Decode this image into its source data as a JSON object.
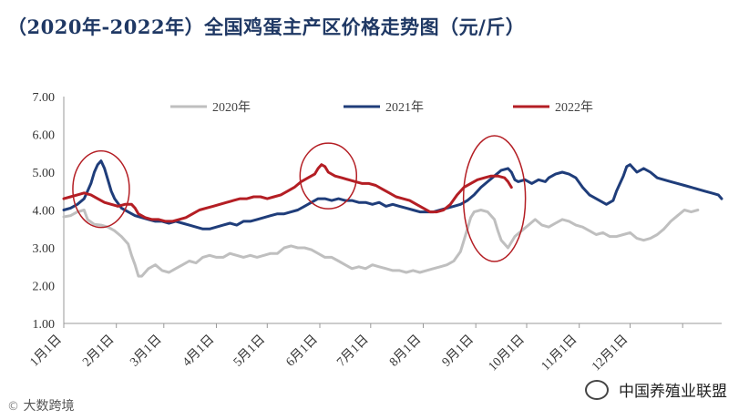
{
  "chart_data": {
    "type": "line",
    "title": "（2020年-2022年）全国鸡蛋主产区价格走势图（元/斤）",
    "ylim": [
      1.0,
      7.0
    ],
    "yticks": [
      "1.00",
      "2.00",
      "3.00",
      "4.00",
      "5.00",
      "6.00",
      "7.00"
    ],
    "xticks": [
      "1月1日",
      "2月1日",
      "3月1日",
      "4月1日",
      "5月1日",
      "6月1日",
      "7月1日",
      "8月1日",
      "9月1日",
      "10月1日",
      "11月1日",
      "12月1日"
    ],
    "legend_position": "top",
    "series": [
      {
        "name": "2020年",
        "color": "#bfbfbf",
        "points": [
          [
            0,
            3.82
          ],
          [
            4,
            3.85
          ],
          [
            8,
            3.95
          ],
          [
            12,
            4.0
          ],
          [
            14,
            3.75
          ],
          [
            18,
            3.62
          ],
          [
            22,
            3.6
          ],
          [
            26,
            3.55
          ],
          [
            30,
            3.45
          ],
          [
            34,
            3.3
          ],
          [
            38,
            3.1
          ],
          [
            40,
            2.8
          ],
          [
            42,
            2.55
          ],
          [
            44,
            2.25
          ],
          [
            46,
            2.25
          ],
          [
            50,
            2.45
          ],
          [
            54,
            2.55
          ],
          [
            58,
            2.4
          ],
          [
            62,
            2.35
          ],
          [
            66,
            2.45
          ],
          [
            70,
            2.55
          ],
          [
            74,
            2.65
          ],
          [
            78,
            2.6
          ],
          [
            82,
            2.75
          ],
          [
            86,
            2.8
          ],
          [
            90,
            2.75
          ],
          [
            94,
            2.75
          ],
          [
            98,
            2.85
          ],
          [
            102,
            2.8
          ],
          [
            106,
            2.75
          ],
          [
            110,
            2.8
          ],
          [
            114,
            2.75
          ],
          [
            118,
            2.8
          ],
          [
            122,
            2.85
          ],
          [
            126,
            2.85
          ],
          [
            130,
            3.0
          ],
          [
            134,
            3.05
          ],
          [
            138,
            3.0
          ],
          [
            142,
            3.0
          ],
          [
            146,
            2.95
          ],
          [
            150,
            2.85
          ],
          [
            154,
            2.75
          ],
          [
            158,
            2.75
          ],
          [
            162,
            2.65
          ],
          [
            166,
            2.55
          ],
          [
            170,
            2.45
          ],
          [
            174,
            2.5
          ],
          [
            178,
            2.45
          ],
          [
            182,
            2.55
          ],
          [
            186,
            2.5
          ],
          [
            190,
            2.45
          ],
          [
            194,
            2.4
          ],
          [
            198,
            2.4
          ],
          [
            202,
            2.35
          ],
          [
            206,
            2.4
          ],
          [
            210,
            2.35
          ],
          [
            214,
            2.4
          ],
          [
            218,
            2.45
          ],
          [
            222,
            2.5
          ],
          [
            226,
            2.55
          ],
          [
            230,
            2.65
          ],
          [
            234,
            2.9
          ],
          [
            236,
            3.2
          ],
          [
            238,
            3.5
          ],
          [
            240,
            3.8
          ],
          [
            242,
            3.95
          ],
          [
            246,
            4.0
          ],
          [
            250,
            3.95
          ],
          [
            254,
            3.75
          ],
          [
            256,
            3.45
          ],
          [
            258,
            3.2
          ],
          [
            262,
            3.0
          ],
          [
            266,
            3.3
          ],
          [
            270,
            3.45
          ],
          [
            274,
            3.6
          ],
          [
            278,
            3.75
          ],
          [
            282,
            3.6
          ],
          [
            286,
            3.55
          ],
          [
            290,
            3.65
          ],
          [
            294,
            3.75
          ],
          [
            298,
            3.7
          ],
          [
            302,
            3.6
          ],
          [
            306,
            3.55
          ],
          [
            310,
            3.45
          ],
          [
            314,
            3.35
          ],
          [
            318,
            3.4
          ],
          [
            322,
            3.3
          ],
          [
            326,
            3.3
          ],
          [
            330,
            3.35
          ],
          [
            334,
            3.4
          ],
          [
            338,
            3.25
          ],
          [
            342,
            3.2
          ],
          [
            346,
            3.25
          ],
          [
            350,
            3.35
          ],
          [
            354,
            3.5
          ],
          [
            358,
            3.7
          ],
          [
            362,
            3.85
          ],
          [
            366,
            4.0
          ],
          [
            370,
            3.95
          ],
          [
            374,
            4.0
          ]
        ]
      },
      {
        "name": "2021年",
        "color": "#1f3d7a",
        "points": [
          [
            0,
            4.0
          ],
          [
            4,
            4.05
          ],
          [
            8,
            4.15
          ],
          [
            12,
            4.3
          ],
          [
            14,
            4.5
          ],
          [
            16,
            4.7
          ],
          [
            18,
            5.0
          ],
          [
            20,
            5.2
          ],
          [
            22,
            5.3
          ],
          [
            24,
            5.1
          ],
          [
            26,
            4.8
          ],
          [
            28,
            4.5
          ],
          [
            30,
            4.3
          ],
          [
            34,
            4.05
          ],
          [
            38,
            3.95
          ],
          [
            42,
            3.85
          ],
          [
            46,
            3.8
          ],
          [
            50,
            3.75
          ],
          [
            54,
            3.7
          ],
          [
            58,
            3.7
          ],
          [
            62,
            3.65
          ],
          [
            66,
            3.7
          ],
          [
            70,
            3.65
          ],
          [
            74,
            3.6
          ],
          [
            78,
            3.55
          ],
          [
            82,
            3.5
          ],
          [
            86,
            3.5
          ],
          [
            90,
            3.55
          ],
          [
            94,
            3.6
          ],
          [
            98,
            3.65
          ],
          [
            102,
            3.6
          ],
          [
            106,
            3.7
          ],
          [
            110,
            3.7
          ],
          [
            114,
            3.75
          ],
          [
            118,
            3.8
          ],
          [
            122,
            3.85
          ],
          [
            126,
            3.9
          ],
          [
            130,
            3.9
          ],
          [
            134,
            3.95
          ],
          [
            138,
            4.0
          ],
          [
            142,
            4.1
          ],
          [
            146,
            4.2
          ],
          [
            150,
            4.3
          ],
          [
            154,
            4.3
          ],
          [
            158,
            4.25
          ],
          [
            162,
            4.3
          ],
          [
            166,
            4.25
          ],
          [
            170,
            4.25
          ],
          [
            174,
            4.2
          ],
          [
            178,
            4.2
          ],
          [
            182,
            4.15
          ],
          [
            186,
            4.2
          ],
          [
            190,
            4.1
          ],
          [
            194,
            4.15
          ],
          [
            198,
            4.1
          ],
          [
            202,
            4.05
          ],
          [
            206,
            4.0
          ],
          [
            210,
            3.95
          ],
          [
            214,
            3.95
          ],
          [
            218,
            3.95
          ],
          [
            222,
            4.0
          ],
          [
            226,
            4.05
          ],
          [
            230,
            4.1
          ],
          [
            234,
            4.15
          ],
          [
            238,
            4.25
          ],
          [
            242,
            4.4
          ],
          [
            246,
            4.6
          ],
          [
            250,
            4.75
          ],
          [
            254,
            4.9
          ],
          [
            258,
            5.05
          ],
          [
            262,
            5.1
          ],
          [
            264,
            5.0
          ],
          [
            266,
            4.8
          ],
          [
            268,
            4.75
          ],
          [
            272,
            4.8
          ],
          [
            276,
            4.7
          ],
          [
            280,
            4.8
          ],
          [
            284,
            4.75
          ],
          [
            286,
            4.85
          ],
          [
            290,
            4.95
          ],
          [
            294,
            5.0
          ],
          [
            298,
            4.95
          ],
          [
            302,
            4.85
          ],
          [
            306,
            4.6
          ],
          [
            310,
            4.4
          ],
          [
            314,
            4.3
          ],
          [
            318,
            4.2
          ],
          [
            320,
            4.15
          ],
          [
            324,
            4.25
          ],
          [
            326,
            4.5
          ],
          [
            330,
            4.9
          ],
          [
            332,
            5.15
          ],
          [
            334,
            5.2
          ],
          [
            338,
            5.0
          ],
          [
            342,
            5.1
          ],
          [
            346,
            5.0
          ],
          [
            350,
            4.85
          ],
          [
            354,
            4.8
          ],
          [
            358,
            4.75
          ],
          [
            362,
            4.7
          ],
          [
            366,
            4.65
          ],
          [
            370,
            4.6
          ],
          [
            374,
            4.55
          ],
          [
            378,
            4.5
          ],
          [
            382,
            4.45
          ],
          [
            386,
            4.4
          ],
          [
            388,
            4.3
          ]
        ]
      },
      {
        "name": "2022年",
        "color": "#b41e24",
        "points": [
          [
            0,
            4.3
          ],
          [
            4,
            4.35
          ],
          [
            8,
            4.4
          ],
          [
            12,
            4.45
          ],
          [
            16,
            4.4
          ],
          [
            20,
            4.3
          ],
          [
            24,
            4.2
          ],
          [
            28,
            4.15
          ],
          [
            32,
            4.1
          ],
          [
            36,
            4.15
          ],
          [
            40,
            4.15
          ],
          [
            42,
            4.05
          ],
          [
            44,
            3.9
          ],
          [
            48,
            3.8
          ],
          [
            52,
            3.75
          ],
          [
            56,
            3.75
          ],
          [
            60,
            3.7
          ],
          [
            64,
            3.7
          ],
          [
            68,
            3.75
          ],
          [
            72,
            3.8
          ],
          [
            76,
            3.9
          ],
          [
            80,
            4.0
          ],
          [
            84,
            4.05
          ],
          [
            88,
            4.1
          ],
          [
            92,
            4.15
          ],
          [
            96,
            4.2
          ],
          [
            100,
            4.25
          ],
          [
            104,
            4.3
          ],
          [
            108,
            4.3
          ],
          [
            112,
            4.35
          ],
          [
            116,
            4.35
          ],
          [
            120,
            4.3
          ],
          [
            124,
            4.35
          ],
          [
            128,
            4.4
          ],
          [
            132,
            4.5
          ],
          [
            136,
            4.6
          ],
          [
            140,
            4.75
          ],
          [
            144,
            4.85
          ],
          [
            148,
            4.95
          ],
          [
            150,
            5.1
          ],
          [
            152,
            5.2
          ],
          [
            154,
            5.15
          ],
          [
            156,
            5.0
          ],
          [
            160,
            4.9
          ],
          [
            164,
            4.85
          ],
          [
            168,
            4.8
          ],
          [
            172,
            4.75
          ],
          [
            176,
            4.7
          ],
          [
            180,
            4.7
          ],
          [
            184,
            4.65
          ],
          [
            188,
            4.55
          ],
          [
            192,
            4.45
          ],
          [
            196,
            4.35
          ],
          [
            200,
            4.3
          ],
          [
            204,
            4.25
          ],
          [
            208,
            4.15
          ],
          [
            212,
            4.05
          ],
          [
            216,
            3.95
          ],
          [
            220,
            3.95
          ],
          [
            224,
            4.0
          ],
          [
            228,
            4.15
          ],
          [
            232,
            4.4
          ],
          [
            236,
            4.6
          ],
          [
            240,
            4.7
          ],
          [
            244,
            4.8
          ],
          [
            248,
            4.85
          ],
          [
            252,
            4.9
          ],
          [
            256,
            4.9
          ],
          [
            260,
            4.85
          ],
          [
            262,
            4.75
          ],
          [
            264,
            4.6
          ]
        ]
      }
    ]
  },
  "watermarks": {
    "left": "大数跨境",
    "right": "中国养殖业联盟"
  }
}
